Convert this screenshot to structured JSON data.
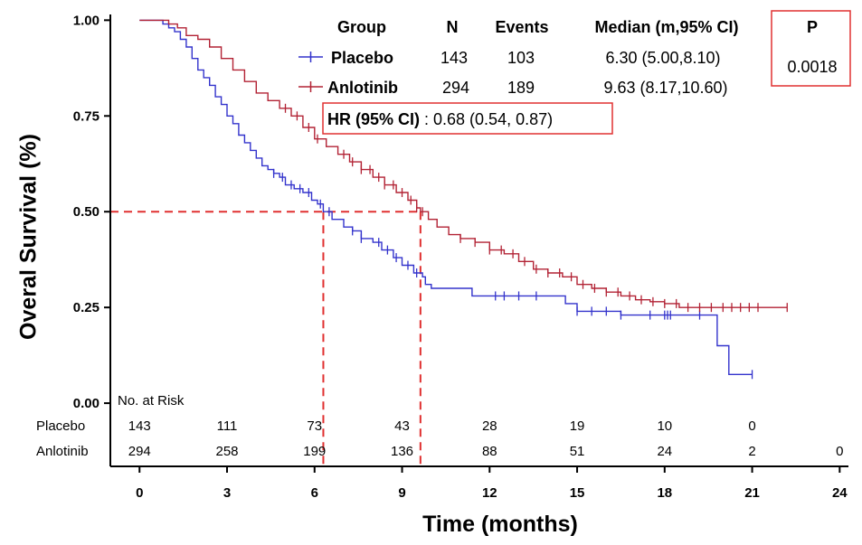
{
  "chart_data": {
    "type": "line",
    "title": "",
    "xlabel": "Time (months)",
    "ylabel": "Overal Survival (%)",
    "xlim": [
      -1,
      24.3
    ],
    "ylim": [
      -0.165,
      1.015
    ],
    "x_ticks": [
      0,
      3,
      6,
      9,
      12,
      15,
      18,
      21,
      24
    ],
    "x_tick_labels": [
      "0",
      "3",
      "6",
      "9",
      "12",
      "15",
      "18",
      "21",
      "24"
    ],
    "y_ticks": [
      0,
      0.25,
      0.5,
      0.75,
      1.0
    ],
    "y_tick_labels": [
      "0.00",
      "0.25",
      "0.50",
      "0.75",
      "1.00"
    ],
    "series": [
      {
        "name": "Placebo",
        "color": "#3333cc",
        "points": [
          [
            0,
            1.0
          ],
          [
            0.6,
            1.0
          ],
          [
            0.8,
            0.99
          ],
          [
            1.0,
            0.98
          ],
          [
            1.2,
            0.97
          ],
          [
            1.4,
            0.95
          ],
          [
            1.6,
            0.93
          ],
          [
            1.8,
            0.9
          ],
          [
            2.0,
            0.87
          ],
          [
            2.2,
            0.85
          ],
          [
            2.4,
            0.83
          ],
          [
            2.6,
            0.8
          ],
          [
            2.8,
            0.78
          ],
          [
            3.0,
            0.75
          ],
          [
            3.2,
            0.73
          ],
          [
            3.4,
            0.7
          ],
          [
            3.6,
            0.68
          ],
          [
            3.8,
            0.66
          ],
          [
            4.0,
            0.64
          ],
          [
            4.2,
            0.62
          ],
          [
            4.4,
            0.61
          ],
          [
            4.6,
            0.6
          ],
          [
            4.8,
            0.59
          ],
          [
            5.0,
            0.57
          ],
          [
            5.3,
            0.56
          ],
          [
            5.6,
            0.55
          ],
          [
            5.9,
            0.53
          ],
          [
            6.1,
            0.52
          ],
          [
            6.3,
            0.5
          ],
          [
            6.6,
            0.48
          ],
          [
            7.0,
            0.46
          ],
          [
            7.3,
            0.45
          ],
          [
            7.6,
            0.43
          ],
          [
            8.0,
            0.42
          ],
          [
            8.3,
            0.4
          ],
          [
            8.7,
            0.38
          ],
          [
            9.0,
            0.36
          ],
          [
            9.4,
            0.34
          ],
          [
            9.7,
            0.33
          ],
          [
            9.8,
            0.31
          ],
          [
            10.0,
            0.3
          ],
          [
            11.0,
            0.3
          ],
          [
            11.4,
            0.28
          ],
          [
            14.0,
            0.28
          ],
          [
            14.6,
            0.26
          ],
          [
            15.0,
            0.24
          ],
          [
            16.0,
            0.24
          ],
          [
            16.5,
            0.23
          ],
          [
            19.6,
            0.23
          ],
          [
            19.8,
            0.15
          ],
          [
            20.1,
            0.15
          ],
          [
            20.2,
            0.075
          ],
          [
            21.0,
            0.075
          ]
        ],
        "censor_times": [
          4.6,
          4.9,
          5.2,
          5.5,
          5.8,
          6.2,
          6.5,
          7.3,
          7.6,
          8.2,
          8.5,
          8.8,
          9.2,
          9.5,
          12.2,
          12.5,
          13.0,
          13.6,
          15.0,
          15.5,
          16.0,
          16.5,
          17.5,
          18.0,
          18.1,
          18.2,
          19.2,
          21.0
        ]
      },
      {
        "name": "Anlotinib",
        "color": "#b22234",
        "points": [
          [
            0,
            1.0
          ],
          [
            0.8,
            1.0
          ],
          [
            1.0,
            0.99
          ],
          [
            1.3,
            0.98
          ],
          [
            1.6,
            0.96
          ],
          [
            2.0,
            0.95
          ],
          [
            2.4,
            0.93
          ],
          [
            2.8,
            0.9
          ],
          [
            3.2,
            0.87
          ],
          [
            3.6,
            0.84
          ],
          [
            4.0,
            0.81
          ],
          [
            4.4,
            0.79
          ],
          [
            4.8,
            0.77
          ],
          [
            5.2,
            0.75
          ],
          [
            5.6,
            0.72
          ],
          [
            6.0,
            0.69
          ],
          [
            6.4,
            0.67
          ],
          [
            6.8,
            0.65
          ],
          [
            7.2,
            0.63
          ],
          [
            7.6,
            0.61
          ],
          [
            8.0,
            0.59
          ],
          [
            8.4,
            0.57
          ],
          [
            8.8,
            0.55
          ],
          [
            9.2,
            0.53
          ],
          [
            9.5,
            0.51
          ],
          [
            9.63,
            0.5
          ],
          [
            9.9,
            0.48
          ],
          [
            10.2,
            0.46
          ],
          [
            10.6,
            0.44
          ],
          [
            11.0,
            0.43
          ],
          [
            11.5,
            0.42
          ],
          [
            12.0,
            0.4
          ],
          [
            12.5,
            0.39
          ],
          [
            13.0,
            0.37
          ],
          [
            13.5,
            0.35
          ],
          [
            14.0,
            0.34
          ],
          [
            14.5,
            0.33
          ],
          [
            15.0,
            0.31
          ],
          [
            15.5,
            0.3
          ],
          [
            16.0,
            0.29
          ],
          [
            16.5,
            0.28
          ],
          [
            17.0,
            0.27
          ],
          [
            17.5,
            0.265
          ],
          [
            18.0,
            0.26
          ],
          [
            18.5,
            0.25
          ],
          [
            22.2,
            0.25
          ]
        ],
        "censor_times": [
          5.0,
          5.4,
          5.8,
          6.1,
          7.0,
          7.3,
          7.6,
          7.9,
          8.2,
          8.4,
          8.7,
          9.0,
          9.3,
          9.5,
          9.7,
          11.0,
          11.5,
          12.0,
          12.4,
          12.8,
          13.2,
          13.6,
          14.0,
          14.4,
          14.8,
          15.2,
          15.6,
          16.0,
          16.4,
          16.8,
          17.2,
          17.6,
          18.0,
          18.4,
          18.8,
          19.2,
          19.6,
          20.0,
          20.3,
          20.6,
          20.9,
          21.2,
          22.2
        ]
      }
    ],
    "median_lines": {
      "y": 0.5,
      "x_values": [
        6.3,
        9.63
      ],
      "color": "#e03030"
    },
    "legend_header": {
      "group": "Group",
      "n": "N",
      "events": "Events",
      "median": "Median (m,95% CI)",
      "p": "P"
    },
    "legend_rows": [
      {
        "name": "Placebo",
        "n": "143",
        "events": "103",
        "median": "6.30 (5.00,8.10)"
      },
      {
        "name": "Anlotinib",
        "n": "294",
        "events": "189",
        "median": "9.63 (8.17,10.60)"
      }
    ],
    "p_value": "0.0018",
    "hr": {
      "label": "HR (95% CI)",
      "value": " : 0.68 (0.54, 0.87)"
    },
    "risk_table": {
      "title": "No. at Risk",
      "rows": [
        {
          "name": "Placebo",
          "times": [
            0,
            3,
            6,
            9,
            12,
            15,
            18,
            21
          ],
          "counts": [
            "143",
            "111",
            "73",
            "43",
            "28",
            "19",
            "10",
            "0"
          ]
        },
        {
          "name": "Anlotinib",
          "times": [
            0,
            3,
            6,
            9,
            12,
            15,
            18,
            21,
            24
          ],
          "counts": [
            "294",
            "258",
            "199",
            "136",
            "88",
            "51",
            "24",
            "2",
            "0"
          ]
        }
      ]
    },
    "box_color": "#e03030"
  }
}
